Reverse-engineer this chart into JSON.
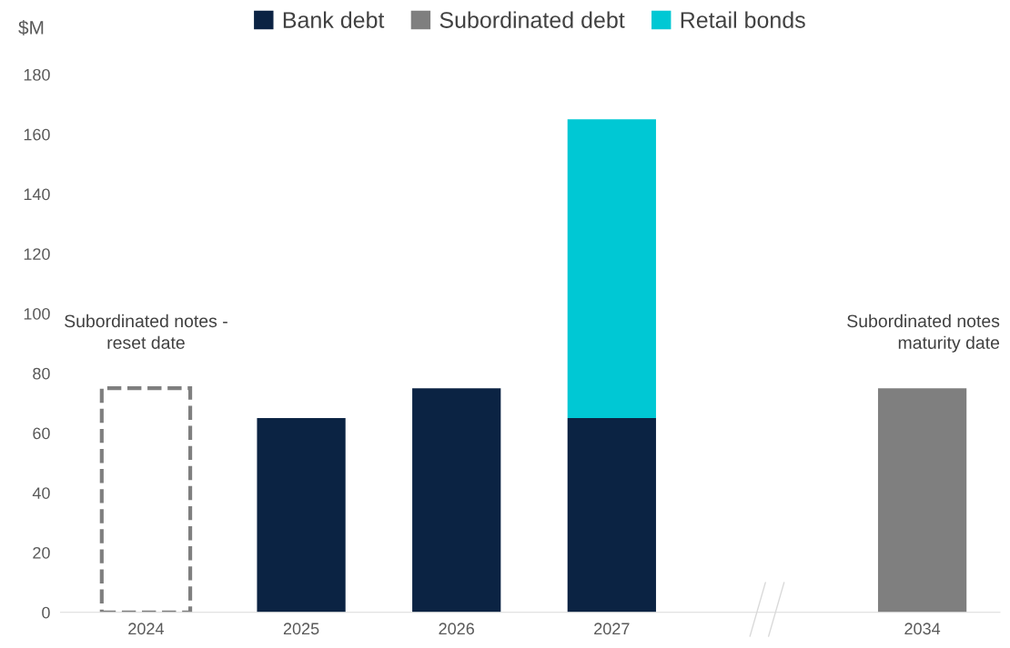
{
  "chart_data": {
    "type": "bar",
    "stacked": true,
    "ylabel": "$M",
    "categories": [
      "2024",
      "2025",
      "2026",
      "2027",
      null,
      "2034"
    ],
    "series": [
      {
        "name": "Bank debt",
        "color": "#0b2343",
        "values": [
          null,
          65,
          75,
          65,
          null,
          null
        ]
      },
      {
        "name": "Subordinated debt",
        "color": "#7f7f7f",
        "values": [
          null,
          null,
          null,
          null,
          null,
          75
        ]
      },
      {
        "name": "Retail bonds",
        "color": "#00c8d4",
        "values": [
          null,
          null,
          null,
          100,
          null,
          null
        ]
      },
      {
        "color": "#7f7f7f",
        "line_style": "dashed",
        "values": [
          75,
          null,
          null,
          null,
          null,
          null
        ]
      }
    ],
    "ylim": [
      0,
      180
    ],
    "yticks": [
      0,
      20,
      40,
      60,
      80,
      100,
      120,
      140,
      160,
      180
    ],
    "annotations": [
      {
        "text": "Subordinated notes -\nreset date",
        "x": "2024",
        "y": 75
      },
      {
        "text": "Subordinated notes\nmaturity date",
        "x": "2034",
        "y": 75
      }
    ],
    "grid": false,
    "legend": "top"
  }
}
